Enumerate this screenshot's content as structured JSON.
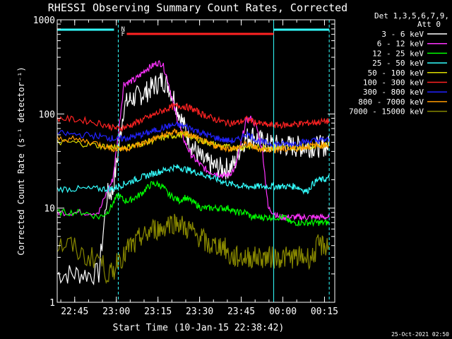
{
  "chart_data": {
    "type": "line",
    "title": "RHESSI Observing Summary Count Rates, Corrected",
    "xlabel": "Start Time (10-Jan-15 22:38:42)",
    "ylabel": "Corrected Count Rate (s⁻¹ detector⁻¹)",
    "ylog": true,
    "ylim": [
      1,
      1000
    ],
    "x_unit": "minutes after 22:38:42",
    "xlim": [
      0,
      100
    ],
    "yticks": [
      {
        "value": 1,
        "label": "1"
      },
      {
        "value": 10,
        "label": "10"
      },
      {
        "value": 100,
        "label": "100"
      },
      {
        "value": 1000,
        "label": "1000"
      }
    ],
    "xticks": [
      {
        "value": 6.3,
        "label": "22:45"
      },
      {
        "value": 21.3,
        "label": "23:00"
      },
      {
        "value": 36.3,
        "label": "23:15"
      },
      {
        "value": 51.3,
        "label": "23:30"
      },
      {
        "value": 66.3,
        "label": "23:45"
      },
      {
        "value": 81.3,
        "label": "00:00"
      },
      {
        "value": 96.3,
        "label": "00:15"
      }
    ],
    "legend": {
      "placement": "right",
      "header": [
        "Det 1,3,5,6,7,9,",
        "Att 0"
      ]
    },
    "series": [
      {
        "name": "3 - 6 keV",
        "color": "#ffffff",
        "x": [
          0,
          5,
          10,
          15,
          18,
          20,
          22,
          24,
          26,
          28,
          30,
          32,
          34,
          36,
          38,
          40,
          42,
          44,
          46,
          48,
          50,
          52,
          54,
          56,
          58,
          60,
          62,
          64,
          66,
          68,
          70,
          72,
          74,
          76,
          78,
          80,
          82,
          84,
          86,
          88,
          90,
          92,
          94,
          96,
          98
        ],
        "y": [
          2,
          2,
          2,
          2,
          14,
          15,
          40,
          120,
          140,
          150,
          160,
          170,
          190,
          210,
          230,
          200,
          150,
          100,
          70,
          50,
          40,
          33,
          30,
          28,
          27,
          26,
          27,
          30,
          45,
          55,
          60,
          55,
          50,
          48,
          47,
          46,
          46,
          46,
          45,
          45,
          45,
          45,
          45,
          46,
          46
        ]
      },
      {
        "name": "6 - 12 keV",
        "color": "#ff33ff",
        "x": [
          0,
          5,
          10,
          15,
          18,
          20,
          22,
          24,
          26,
          28,
          30,
          32,
          34,
          36,
          38,
          40,
          42,
          44,
          46,
          48,
          50,
          52,
          54,
          56,
          58,
          60,
          62,
          64,
          66,
          68,
          70,
          72,
          74,
          76,
          78,
          80,
          82,
          84,
          86,
          88,
          90,
          92,
          94,
          96,
          98
        ],
        "y": [
          9,
          9,
          9,
          9,
          15,
          20,
          60,
          210,
          220,
          230,
          260,
          300,
          320,
          350,
          340,
          220,
          120,
          75,
          50,
          38,
          32,
          28,
          25,
          24,
          23,
          22,
          23,
          26,
          45,
          85,
          90,
          70,
          40,
          10,
          9,
          8,
          8,
          8,
          8,
          8,
          8,
          8,
          8,
          8,
          8
        ]
      },
      {
        "name": "12 - 25 keV",
        "color": "#00ff00",
        "x": [
          0,
          5,
          10,
          15,
          18,
          20,
          22,
          24,
          26,
          28,
          30,
          32,
          34,
          36,
          38,
          40,
          42,
          44,
          46,
          48,
          50,
          52,
          54,
          56,
          58,
          60,
          62,
          64,
          66,
          68,
          70,
          72,
          74,
          76,
          78,
          80,
          82,
          84,
          86,
          88,
          90,
          92,
          94,
          96,
          98
        ],
        "y": [
          9,
          9,
          9,
          8,
          9,
          11,
          14,
          12,
          12,
          13,
          14,
          16,
          18,
          18,
          17,
          14,
          13,
          12,
          13,
          12,
          11,
          10,
          10,
          10,
          10,
          10,
          10,
          9,
          9,
          9,
          8,
          8,
          8,
          8,
          8,
          8,
          8,
          7,
          7,
          7,
          7,
          7,
          7,
          7,
          7
        ]
      },
      {
        "name": "25 - 50 keV",
        "color": "#33ffff",
        "x": [
          0,
          5,
          10,
          15,
          18,
          20,
          22,
          24,
          26,
          28,
          30,
          32,
          34,
          36,
          38,
          40,
          42,
          44,
          46,
          48,
          50,
          52,
          54,
          56,
          58,
          60,
          62,
          64,
          66,
          68,
          70,
          72,
          74,
          76,
          78,
          80,
          82,
          84,
          86,
          88,
          90,
          92,
          94,
          96,
          98
        ],
        "y": [
          16,
          16,
          16,
          16,
          16,
          16,
          17,
          18,
          19,
          20,
          21,
          22,
          23,
          24,
          25,
          26,
          27,
          27,
          26,
          25,
          24,
          23,
          22,
          21,
          20,
          19,
          18,
          18,
          17,
          17,
          17,
          17,
          17,
          17,
          17,
          17,
          17,
          17,
          17,
          16,
          15,
          18,
          20,
          20,
          21
        ]
      },
      {
        "name": "50 - 100 keV",
        "color": "#dddd00",
        "x": [
          0,
          5,
          10,
          15,
          18,
          20,
          22,
          24,
          26,
          28,
          30,
          32,
          34,
          36,
          38,
          40,
          42,
          44,
          46,
          48,
          50,
          52,
          54,
          56,
          58,
          60,
          62,
          64,
          66,
          68,
          70,
          72,
          74,
          76,
          78,
          80,
          82,
          84,
          86,
          88,
          90,
          92,
          94,
          96,
          98
        ],
        "y": [
          50,
          50,
          48,
          46,
          45,
          44,
          43,
          44,
          45,
          46,
          48,
          50,
          52,
          54,
          56,
          58,
          59,
          60,
          60,
          58,
          55,
          52,
          50,
          48,
          46,
          45,
          44,
          44,
          44,
          45,
          45,
          44,
          44,
          44,
          44,
          44,
          44,
          44,
          44,
          45,
          45,
          46,
          46,
          47,
          47
        ]
      },
      {
        "name": "100 - 300 keV",
        "color": "#ff2222",
        "x": [
          0,
          5,
          10,
          15,
          18,
          20,
          22,
          24,
          26,
          28,
          30,
          32,
          34,
          36,
          38,
          40,
          42,
          44,
          46,
          48,
          50,
          52,
          54,
          56,
          58,
          60,
          62,
          64,
          66,
          68,
          70,
          72,
          74,
          76,
          78,
          80,
          82,
          84,
          86,
          88,
          90,
          92,
          94,
          96,
          98
        ],
        "y": [
          90,
          88,
          85,
          80,
          75,
          72,
          70,
          72,
          75,
          80,
          85,
          90,
          95,
          102,
          108,
          115,
          120,
          122,
          120,
          115,
          108,
          100,
          95,
          90,
          85,
          82,
          80,
          80,
          82,
          88,
          85,
          80,
          78,
          76,
          76,
          76,
          76,
          77,
          78,
          79,
          80,
          81,
          82,
          83,
          84
        ]
      },
      {
        "name": "300 - 800 keV",
        "color": "#2222ff",
        "x": [
          0,
          5,
          10,
          15,
          18,
          20,
          22,
          24,
          26,
          28,
          30,
          32,
          34,
          36,
          38,
          40,
          42,
          44,
          46,
          48,
          50,
          52,
          54,
          56,
          58,
          60,
          62,
          64,
          66,
          68,
          70,
          72,
          74,
          76,
          78,
          80,
          82,
          84,
          86,
          88,
          90,
          92,
          94,
          96,
          98
        ],
        "y": [
          62,
          61,
          60,
          58,
          56,
          55,
          54,
          55,
          56,
          58,
          60,
          62,
          65,
          68,
          71,
          74,
          76,
          76,
          74,
          71,
          67,
          63,
          60,
          57,
          55,
          53,
          52,
          52,
          55,
          62,
          58,
          52,
          50,
          49,
          48,
          48,
          48,
          48,
          49,
          50,
          51,
          52,
          52,
          53,
          53
        ]
      },
      {
        "name": "800 - 7000 keV",
        "color": "#ff9900",
        "x": [
          0,
          5,
          10,
          15,
          18,
          20,
          22,
          24,
          26,
          28,
          30,
          32,
          34,
          36,
          38,
          40,
          42,
          44,
          46,
          48,
          50,
          52,
          54,
          56,
          58,
          60,
          62,
          64,
          66,
          68,
          70,
          72,
          74,
          76,
          78,
          80,
          82,
          84,
          86,
          88,
          90,
          92,
          94,
          96,
          98
        ],
        "y": [
          55,
          54,
          52,
          48,
          45,
          43,
          42,
          43,
          44,
          46,
          48,
          50,
          53,
          56,
          59,
          62,
          64,
          64,
          62,
          59,
          56,
          52,
          49,
          47,
          45,
          44,
          43,
          43,
          45,
          48,
          46,
          43,
          42,
          42,
          42,
          42,
          42,
          43,
          43,
          44,
          45,
          46,
          46,
          47,
          47
        ]
      },
      {
        "name": "7000 - 15000 keV",
        "color": "#888800",
        "x": [
          0,
          5,
          10,
          15,
          18,
          20,
          22,
          24,
          26,
          28,
          30,
          32,
          34,
          36,
          38,
          40,
          42,
          44,
          46,
          48,
          50,
          52,
          54,
          56,
          58,
          60,
          62,
          64,
          66,
          68,
          70,
          72,
          74,
          76,
          78,
          80,
          82,
          84,
          86,
          88,
          90,
          92,
          94,
          96,
          98
        ],
        "y": [
          4,
          4,
          3,
          3,
          2,
          2,
          3,
          3,
          4,
          4,
          5,
          5,
          6,
          6,
          6,
          7,
          7,
          7,
          6,
          6,
          5,
          5,
          4,
          4,
          4,
          4,
          3,
          3,
          3,
          3,
          3,
          3,
          3,
          3,
          3,
          3,
          3,
          3,
          3,
          3,
          3,
          3,
          4,
          4,
          4
        ]
      }
    ],
    "annotations": [
      {
        "text": "N",
        "color": "#33ffff",
        "x": 22
      },
      {
        "text": "F",
        "color": "#ff2222",
        "x": 22
      }
    ]
  },
  "footer": {
    "timestamp": "25-Oct-2021 02:50"
  }
}
